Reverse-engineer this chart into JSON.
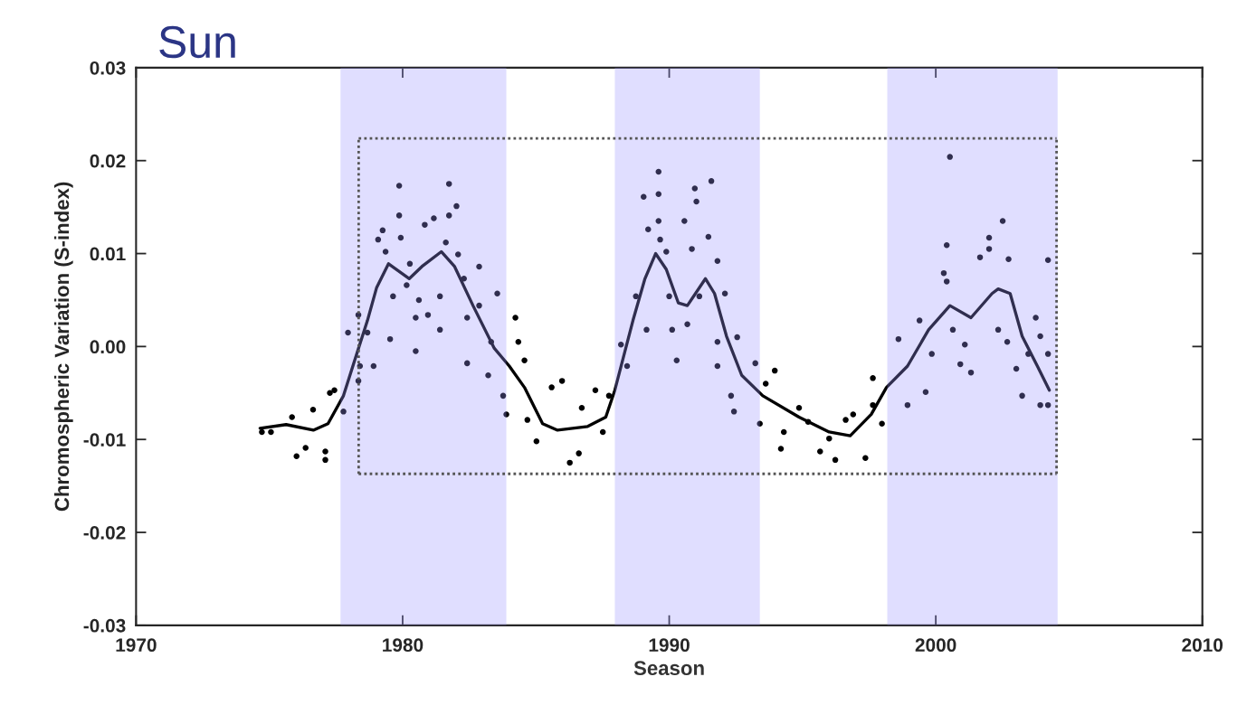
{
  "chart_data": {
    "type": "scatter",
    "title": "Sun",
    "xlabel": "Season",
    "ylabel": "Chromospheric Variation (S-index)",
    "xlim": [
      1970,
      2010
    ],
    "xticks": [
      1970,
      1980,
      1990,
      2000,
      2010
    ],
    "ylim": [
      -0.03,
      0.03
    ],
    "yticks": [
      {
        "value": -0.03,
        "label": "-0.03"
      },
      {
        "value": -0.02,
        "label": "-0.02"
      },
      {
        "value": -0.01,
        "label": "-0.01"
      },
      {
        "value": 0,
        "label": "0.00"
      },
      {
        "value": 0.01,
        "label": "0.01"
      },
      {
        "value": 0.02,
        "label": "0.02"
      },
      {
        "value": 0.03,
        "label": "0.03"
      }
    ],
    "grid": false,
    "bands": [
      {
        "axis": "x",
        "from": 1977.67,
        "to": 1983.89,
        "color": "#e0deff"
      },
      {
        "axis": "x",
        "from": 1987.96,
        "to": 1993.4,
        "color": "#e0deff"
      },
      {
        "axis": "x",
        "from": 1998.18,
        "to": 2004.57,
        "color": "#e0deff"
      }
    ],
    "series": [
      {
        "color": "#000000",
        "marker": "circle",
        "x": [
          1974.72,
          1975.06,
          1975.85,
          1976.02,
          1976.36,
          1976.64,
          1977.1,
          1977.1,
          1977.27,
          1977.44,
          1977.78,
          1977.95,
          1978.34,
          1978.34,
          1978.4,
          1978.68,
          1978.91,
          1979.08,
          1979.25,
          1979.36,
          1979.53,
          1979.64,
          1979.87,
          1979.87,
          1979.93,
          1980.15,
          1980.27,
          1980.49,
          1980.49,
          1980.61,
          1980.83,
          1980.95,
          1981.17,
          1981.4,
          1981.4,
          1981.62,
          1981.74,
          1981.74,
          1982.02,
          1982.08,
          1982.3,
          1982.42,
          1982.42,
          1982.87,
          1982.87,
          1983.21,
          1983.32,
          1983.55,
          1983.77,
          1983.89,
          1984.23,
          1984.34,
          1984.57,
          1984.68,
          1985.02,
          1985.59,
          1985.98,
          1986.27,
          1986.61,
          1986.72,
          1987.23,
          1987.51,
          1987.74,
          1988.19,
          1988.42,
          1988.75,
          1989.04,
          1989.15,
          1989.21,
          1989.6,
          1989.6,
          1989.6,
          1989.66,
          1989.89,
          1990.0,
          1990.11,
          1990.28,
          1990.57,
          1990.68,
          1990.85,
          1990.96,
          1991.02,
          1991.13,
          1991.47,
          1991.58,
          1991.81,
          1991.81,
          1991.81,
          1992.09,
          1992.32,
          1992.43,
          1992.55,
          1993.23,
          1993.4,
          1993.62,
          1993.96,
          1994.19,
          1994.3,
          1994.87,
          1995.21,
          1995.66,
          1996.0,
          1996.23,
          1996.62,
          1996.9,
          1997.36,
          1997.64,
          1997.64,
          1997.98,
          1998.6,
          1998.94,
          1999.39,
          1999.62,
          1999.85,
          2000.3,
          2000.41,
          2000.53,
          2000.41,
          2000.64,
          2000.92,
          2001.09,
          2001.32,
          2001.66,
          2002.0,
          2002.51,
          2002.0,
          2002.73,
          2002.34,
          2002.68,
          2003.02,
          2003.24,
          2003.75,
          2003.92,
          2004.21,
          2004.21,
          2003.92,
          2004.21,
          2003.47
        ],
        "values": [
          -0.0092,
          -0.0092,
          -0.0076,
          -0.0118,
          -0.0109,
          -0.0068,
          -0.0113,
          -0.0122,
          -0.005,
          -0.0047,
          -0.007,
          0.0015,
          0.0034,
          -0.0037,
          -0.0021,
          0.0015,
          -0.0021,
          0.0115,
          0.0125,
          0.0102,
          0.0008,
          0.0054,
          0.0173,
          0.0141,
          0.0117,
          0.0066,
          0.0089,
          0.0031,
          -0.0005,
          0.005,
          0.0131,
          0.0034,
          0.0138,
          0.0054,
          0.0018,
          0.0112,
          0.0175,
          0.0141,
          0.0151,
          0.0099,
          0.0073,
          -0.0018,
          0.0031,
          0.0086,
          0.0044,
          -0.0031,
          0.0005,
          0.0057,
          -0.0053,
          -0.0073,
          0.0031,
          0.0005,
          -0.0015,
          -0.0079,
          -0.0102,
          -0.0044,
          -0.0037,
          -0.0125,
          -0.0115,
          -0.0066,
          -0.0047,
          -0.0092,
          -0.0053,
          0.0002,
          -0.0021,
          0.0054,
          0.0161,
          0.0018,
          0.0126,
          0.0188,
          0.0164,
          0.0135,
          0.0115,
          0.0102,
          0.0054,
          0.0018,
          -0.0015,
          0.0135,
          0.0024,
          0.0105,
          0.017,
          0.0156,
          0.0054,
          0.0118,
          0.0178,
          0.0092,
          0.0005,
          -0.0021,
          0.0057,
          -0.0053,
          -0.007,
          0.001,
          -0.0018,
          -0.0083,
          -0.004,
          -0.0026,
          -0.011,
          -0.0092,
          -0.0066,
          -0.0081,
          -0.0113,
          -0.0099,
          -0.0122,
          -0.0079,
          -0.0073,
          -0.012,
          -0.0034,
          -0.0063,
          -0.0083,
          0.0008,
          -0.0063,
          0.0028,
          -0.0049,
          -0.0008,
          0.0079,
          0.0109,
          0.0204,
          0.007,
          0.0018,
          -0.0019,
          0.0002,
          -0.0028,
          0.0096,
          0.0117,
          0.0135,
          0.0105,
          0.0094,
          0.0018,
          0.0005,
          -0.0024,
          -0.0053,
          0.0031,
          0.0011,
          -0.0008,
          -0.0063,
          -0.0063,
          0.0093,
          -0.0008
        ]
      },
      {
        "type": "line",
        "color": "#000000",
        "marker": "none",
        "line_style": "solid",
        "x": [
          1974.65,
          1975.63,
          1976.65,
          1977.2,
          1977.78,
          1978.2,
          1978.68,
          1979.02,
          1979.47,
          1980.25,
          1980.72,
          1981.45,
          1981.95,
          1982.64,
          1983.44,
          1984.0,
          1984.57,
          1985.25,
          1985.81,
          1986.94,
          1987.62,
          1987.96,
          1988.64,
          1989.09,
          1989.49,
          1989.89,
          1990.34,
          1990.68,
          1991.36,
          1991.7,
          1992.15,
          1992.72,
          1993.51,
          1994.87,
          1996.0,
          1996.79,
          1997.58,
          1998.15,
          1998.94,
          1999.73,
          2000.53,
          2001.32,
          2002.11,
          2002.34,
          2002.79,
          2003.24,
          2003.81,
          2004.26
        ],
        "values": [
          -0.0088,
          -0.0084,
          -0.009,
          -0.0083,
          -0.0053,
          -0.0015,
          0.0028,
          0.0063,
          0.0089,
          0.0073,
          0.0086,
          0.0102,
          0.0086,
          0.0044,
          -0.0002,
          -0.0021,
          -0.0044,
          -0.0083,
          -0.009,
          -0.0086,
          -0.0076,
          -0.0047,
          0.0028,
          0.0073,
          0.01,
          0.0083,
          0.0047,
          0.0044,
          0.0073,
          0.0057,
          0.0011,
          -0.0031,
          -0.0053,
          -0.0076,
          -0.0092,
          -0.0096,
          -0.0073,
          -0.0044,
          -0.0021,
          0.0018,
          0.0044,
          0.0031,
          0.0057,
          0.0062,
          0.0057,
          0.0011,
          -0.0021,
          -0.0047
        ]
      },
      {
        "type": "line",
        "color": "#555555",
        "marker": "none",
        "line_style": "dotted",
        "x": [
          1978.35,
          2004.53
        ],
        "values": [
          0.0224,
          0.0224
        ]
      },
      {
        "type": "line",
        "color": "#555555",
        "marker": "none",
        "line_style": "dotted",
        "x": [
          1978.35,
          2004.53
        ],
        "values": [
          -0.0137,
          -0.0137
        ]
      },
      {
        "type": "line",
        "color": "#555555",
        "marker": "none",
        "line_style": "dotted",
        "x": [
          1978.35,
          1978.35
        ],
        "values": [
          -0.0137,
          0.0224
        ]
      },
      {
        "type": "line",
        "color": "#555555",
        "marker": "none",
        "line_style": "dotted",
        "x": [
          2004.53,
          2004.53
        ],
        "values": [
          -0.0137,
          0.0224
        ]
      }
    ]
  }
}
